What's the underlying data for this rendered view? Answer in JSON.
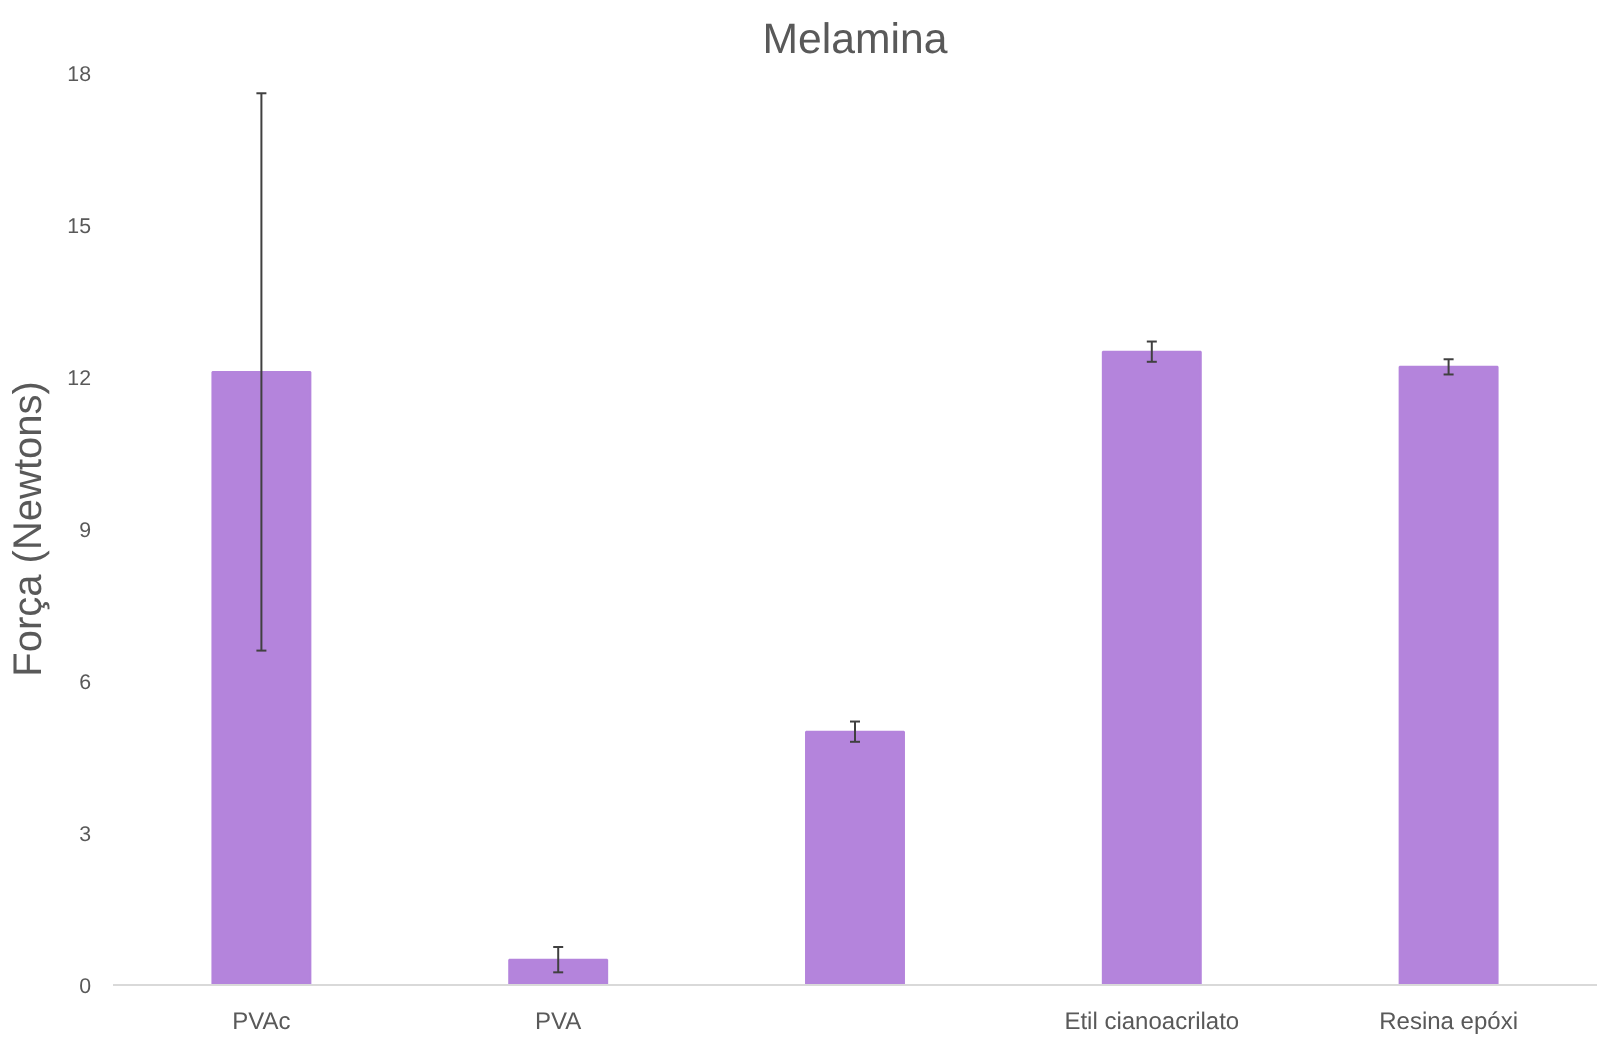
{
  "chart_data": {
    "type": "bar",
    "title": "Melamina",
    "ylabel": "Força (Newtons)",
    "categories": [
      "PVAc",
      "PVA",
      null,
      "Etil cianoacrilato",
      "Resina epóxi"
    ],
    "values": [
      12.1,
      0.5,
      5.0,
      12.5,
      12.2
    ],
    "errors": [
      5.5,
      0.25,
      0.2,
      0.2,
      0.15
    ],
    "color": "#b484dc",
    "ylim": [
      0,
      18
    ],
    "yticks": [
      0,
      3,
      6,
      9,
      12,
      15,
      18
    ],
    "grid": false
  }
}
